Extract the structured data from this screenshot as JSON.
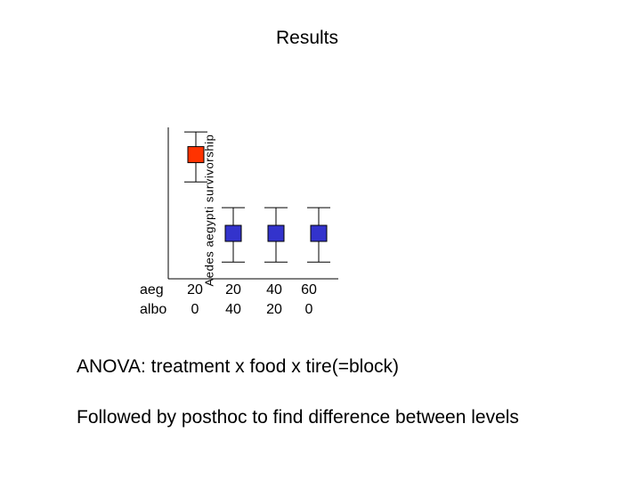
{
  "slide_title": "Results",
  "chart_data": {
    "type": "scatter",
    "title": "",
    "ylabel": "Aedes aegypti survivorship",
    "xlabel": "",
    "row_labels": [
      "aeg",
      "albo"
    ],
    "categories": [
      {
        "aeg": "20",
        "albo": "0"
      },
      {
        "aeg": "20",
        "albo": "40"
      },
      {
        "aeg": "40",
        "albo": "20"
      },
      {
        "aeg": "60",
        "albo": "0"
      }
    ],
    "ylim": [
      0,
      1
    ],
    "points": [
      {
        "mean": 0.82,
        "lower": 0.64,
        "upper": 0.97,
        "color": "#ff3300"
      },
      {
        "mean": 0.3,
        "lower": 0.11,
        "upper": 0.47,
        "color": "#3333cc"
      },
      {
        "mean": 0.3,
        "lower": 0.11,
        "upper": 0.47,
        "color": "#3333cc"
      },
      {
        "mean": 0.3,
        "lower": 0.11,
        "upper": 0.47,
        "color": "#3333cc"
      }
    ],
    "grid": false,
    "legend": "none"
  },
  "notes": [
    "ANOVA: treatment x food x tire(=block)",
    "Followed by posthoc to find difference between levels"
  ]
}
